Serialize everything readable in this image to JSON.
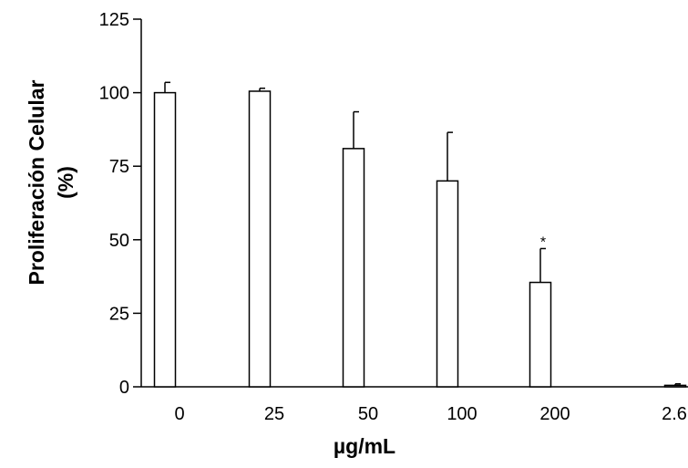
{
  "chart_data": {
    "type": "bar",
    "title": "",
    "xlabel": "µg/mL",
    "ylabel": "Proliferación Celular",
    "ylabel_line2": "(%)",
    "categories": [
      "0",
      "25",
      "50",
      "100",
      "200",
      "2.6"
    ],
    "values": [
      100,
      100.5,
      81,
      70,
      35.5,
      0.5
    ],
    "error_upper": [
      103.5,
      101.5,
      93.5,
      86.5,
      47,
      1
    ],
    "annotations": [
      {
        "category": "200",
        "text": "*"
      }
    ],
    "ylim": [
      0,
      125
    ],
    "yticks": [
      0,
      25,
      50,
      75,
      100,
      125
    ],
    "grid": false,
    "bar_fill": "#ffffff",
    "bar_stroke": "#000000"
  }
}
